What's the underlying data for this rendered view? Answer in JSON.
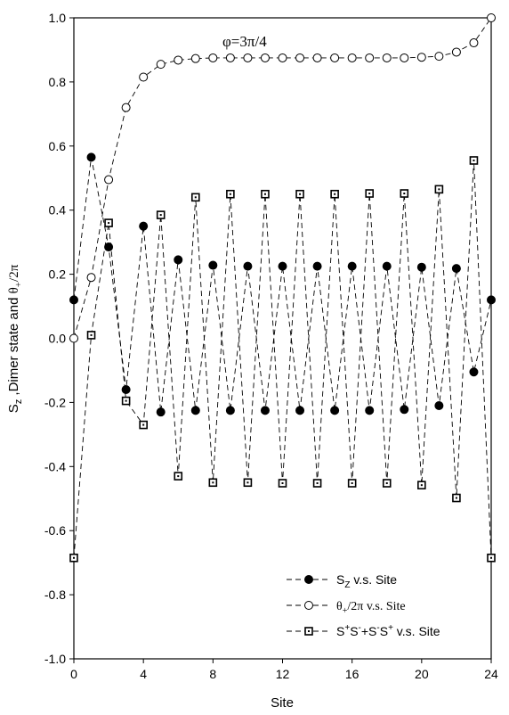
{
  "chart_data": {
    "type": "line",
    "annotation": "φ=3π/4",
    "xlabel": "Site",
    "ylabel_parts": {
      "s": "S",
      "z": "z",
      "mid": " ,Dimer state and  ",
      "theta": "θ",
      "plus": "+",
      "tail": "/2π"
    },
    "xlim": [
      0,
      24
    ],
    "ylim": [
      -1.0,
      1.0
    ],
    "x_ticks": [
      0,
      4,
      8,
      12,
      16,
      20,
      24
    ],
    "y_ticks": [
      -1.0,
      -0.8,
      -0.6,
      -0.4,
      -0.2,
      0.0,
      0.2,
      0.4,
      0.6,
      0.8,
      1.0
    ],
    "y_tick_labels": [
      "-1.0",
      "-0.8",
      "-0.6",
      "-0.4",
      "-0.2",
      "0.0",
      "0.2",
      "0.4",
      "0.6",
      "0.8",
      "1.0"
    ],
    "grid": false,
    "legend_position": "bottom-right",
    "x": [
      0,
      1,
      2,
      3,
      4,
      5,
      6,
      7,
      8,
      9,
      10,
      11,
      12,
      13,
      14,
      15,
      16,
      17,
      18,
      19,
      20,
      21,
      22,
      23,
      24
    ],
    "series": [
      {
        "name": "Sz v.s. Site",
        "legend": {
          "main": "S",
          "sub": "Z",
          "tail": " v.s. Site"
        },
        "marker": "filled-circle",
        "values": [
          0.12,
          0.565,
          0.285,
          -0.16,
          0.35,
          -0.23,
          0.245,
          -0.225,
          0.228,
          -0.225,
          0.225,
          -0.225,
          0.225,
          -0.225,
          0.225,
          -0.225,
          0.225,
          -0.225,
          0.225,
          -0.222,
          0.222,
          -0.21,
          0.218,
          -0.105,
          0.12
        ]
      },
      {
        "name": "θ+/2π v.s. Site",
        "legend": {
          "main": "θ",
          "sub": "+",
          "tail": "/2π  v.s. Site"
        },
        "marker": "open-circle",
        "values": [
          0.0,
          0.19,
          0.495,
          0.72,
          0.815,
          0.855,
          0.868,
          0.873,
          0.875,
          0.875,
          0.875,
          0.875,
          0.875,
          0.875,
          0.875,
          0.875,
          0.875,
          0.875,
          0.875,
          0.875,
          0.877,
          0.88,
          0.893,
          0.922,
          1.0
        ]
      },
      {
        "name": "S+S-+S-S+ v.s. Site",
        "legend": {
          "parts": [
            "S",
            "+",
            "S",
            "-",
            "+S",
            "-",
            "S",
            "+",
            " v.s. Site"
          ]
        },
        "marker": "dotted-square",
        "values": [
          -0.685,
          0.01,
          0.36,
          -0.195,
          -0.27,
          0.385,
          -0.43,
          0.44,
          -0.45,
          0.45,
          -0.45,
          0.45,
          -0.452,
          0.45,
          -0.452,
          0.45,
          -0.452,
          0.452,
          -0.452,
          0.452,
          -0.458,
          0.465,
          -0.498,
          0.555,
          -0.685
        ]
      }
    ]
  }
}
